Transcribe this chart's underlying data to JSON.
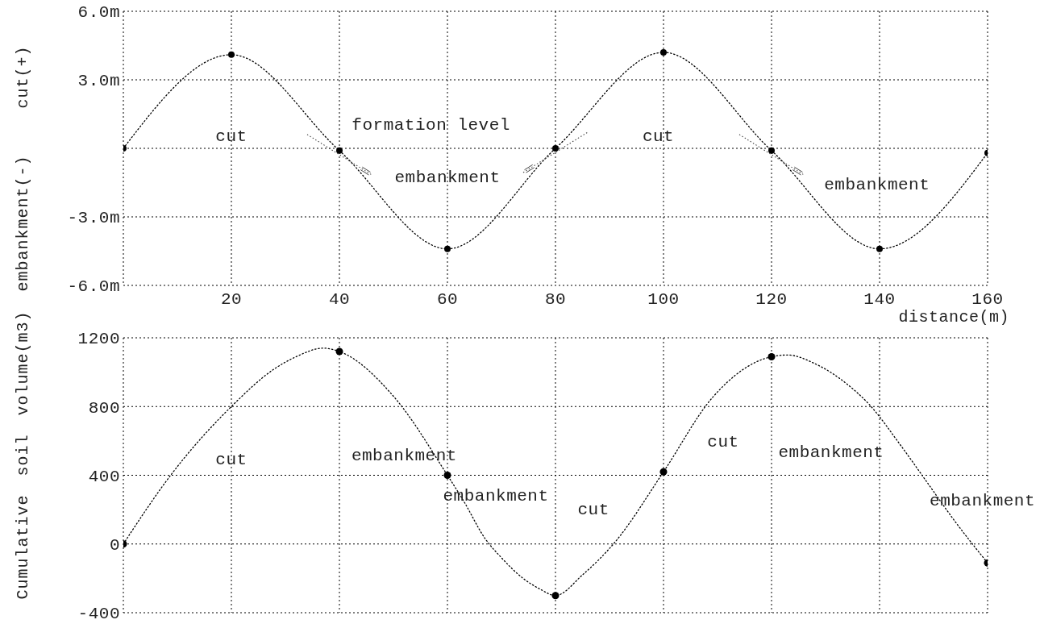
{
  "chart_data": [
    {
      "type": "line",
      "xlabel": "distance(m)",
      "ylabel": "embankment(-) cut(+)",
      "x": [
        0,
        20,
        40,
        60,
        80,
        100,
        120,
        140,
        160
      ],
      "series": [
        {
          "color": "#000000",
          "values": [
            0,
            4.1,
            -0.1,
            -4.4,
            0,
            4.2,
            -0.1,
            -4.4,
            -0.2
          ]
        }
      ],
      "xlim": [
        0,
        160
      ],
      "xticks": [
        {
          "value": 0,
          "label": null
        },
        20,
        40,
        60,
        80,
        100,
        120,
        140,
        160
      ],
      "ylim": [
        -6,
        6
      ],
      "yticks": [
        {
          "value": 6,
          "label": "6.0m"
        },
        {
          "value": 3,
          "label": "3.0m"
        },
        {
          "value": 0,
          "label": null
        },
        {
          "value": -3,
          "label": "-3.0m"
        },
        {
          "value": -6,
          "label": "-6.0m"
        }
      ],
      "grid": true,
      "marker": "circle",
      "line_style": "dotted",
      "annotations": [
        "cut",
        "formation level",
        "embankment",
        "cut",
        "embankment"
      ]
    },
    {
      "type": "line",
      "ylabel": "Cumulative soil volume(m3)",
      "series": [
        {
          "color": "#000000",
          "marker": "none",
          "x": [
            0,
            9,
            20,
            28,
            32,
            37,
            40,
            50,
            60,
            63,
            67,
            70,
            74,
            77,
            80,
            85,
            91,
            100,
            109,
            120,
            123,
            128,
            134,
            138,
            144,
            149,
            154,
            160
          ],
          "values": [
            0,
            410,
            800,
            1020,
            1090,
            1140,
            1120,
            860,
            400,
            250,
            30,
            -80,
            -200,
            -260,
            -300,
            -180,
            10,
            420,
            850,
            1090,
            1100,
            1050,
            930,
            815,
            570,
            350,
            130,
            -110
          ]
        },
        {
          "type": "scatter",
          "color": "#000000",
          "x": [
            0,
            40,
            60,
            80,
            100,
            120,
            160
          ],
          "values": [
            0,
            1120,
            400,
            -300,
            420,
            1090,
            -110
          ]
        }
      ],
      "xlim": [
        0,
        160
      ],
      "xticks": [
        0,
        20,
        40,
        60,
        80,
        100,
        120,
        140,
        160
      ],
      "ylim": [
        -400,
        1200
      ],
      "yticks": [
        -400,
        0,
        400,
        800,
        1200
      ],
      "grid": true,
      "tick_labels": "y",
      "marker": "circle",
      "line_style": "dotted",
      "annotations": [
        "cut",
        "embankment",
        "embankment",
        "cut",
        "cut",
        "embankment",
        "embankment"
      ]
    }
  ]
}
